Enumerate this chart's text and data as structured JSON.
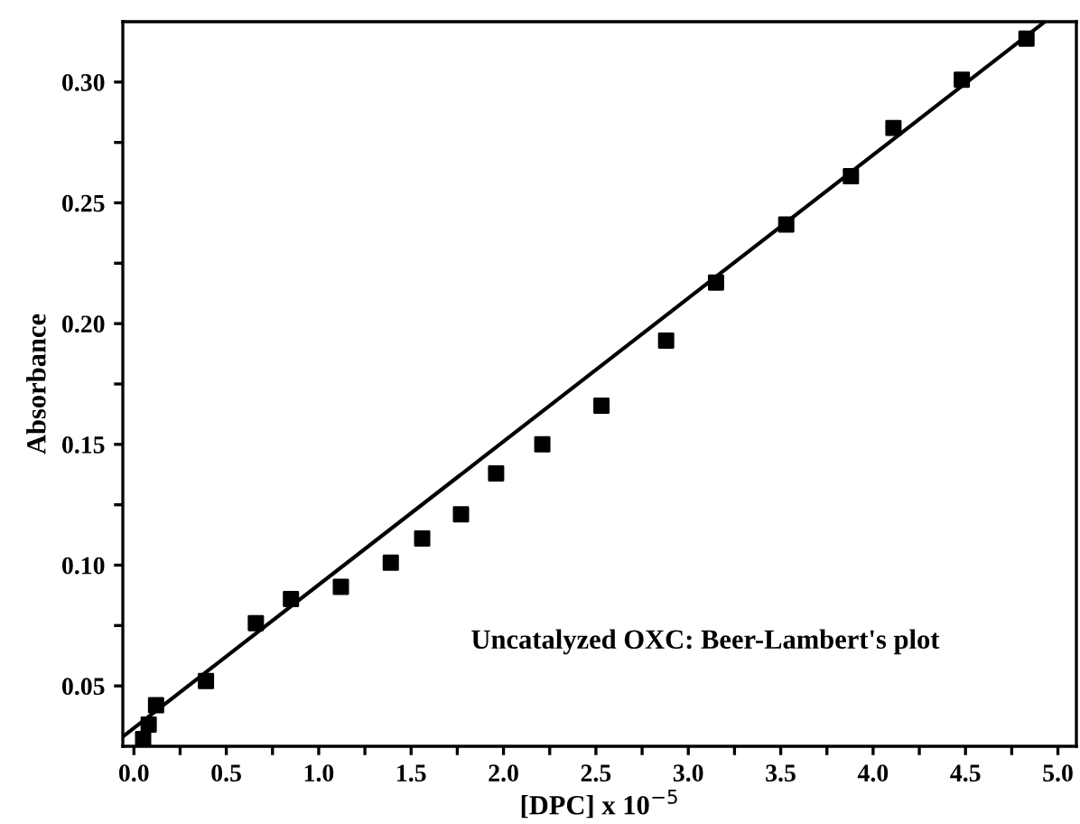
{
  "chart_data": {
    "type": "scatter",
    "xlabel": "[DPC] x 10$^{−5}$",
    "ylabel": "Absorbance",
    "annotations": [
      "Uncatalyzed OXC: Beer-Lambert's plot"
    ],
    "xlim": [
      -0.06,
      5.1
    ],
    "ylim": [
      0.025,
      0.325
    ],
    "xticks": [
      {
        "value": 0,
        "label": "0.0"
      },
      {
        "value": 0.25,
        "label": null
      },
      0.5,
      {
        "value": 0.75,
        "label": null
      },
      {
        "value": 1,
        "label": "1.0"
      },
      {
        "value": 1.25,
        "label": null
      },
      1.5,
      {
        "value": 1.75,
        "label": null
      },
      {
        "value": 2,
        "label": "2.0"
      },
      {
        "value": 2.25,
        "label": null
      },
      2.5,
      {
        "value": 2.75,
        "label": null
      },
      {
        "value": 3,
        "label": "3.0"
      },
      {
        "value": 3.25,
        "label": null
      },
      3.5,
      {
        "value": 3.75,
        "label": null
      },
      {
        "value": 4,
        "label": "4.0"
      },
      {
        "value": 4.25,
        "label": null
      },
      4.5,
      {
        "value": 4.75,
        "label": null
      },
      {
        "value": 5,
        "label": "5.0"
      }
    ],
    "yticks": [
      0.05,
      {
        "value": 0.075,
        "label": null
      },
      {
        "value": 0.1,
        "label": "0.10"
      },
      {
        "value": 0.125,
        "label": null
      },
      0.15,
      {
        "value": 0.175,
        "label": null
      },
      {
        "value": 0.2,
        "label": "0.20"
      },
      {
        "value": 0.225,
        "label": null
      },
      0.25,
      {
        "value": 0.275,
        "label": null
      },
      {
        "value": 0.3,
        "label": "0.30"
      }
    ],
    "grid": false,
    "legend": false,
    "series": [
      {
        "color": "#000000",
        "marker": "square",
        "x": [
          0.05,
          0.08,
          0.12,
          0.39,
          0.66,
          0.85,
          1.12,
          1.39,
          1.56,
          1.77,
          1.96,
          2.21,
          2.53,
          2.88,
          3.15,
          3.53,
          3.88,
          4.11,
          4.48,
          4.83
        ],
        "values": [
          0.028,
          0.034,
          0.042,
          0.052,
          0.076,
          0.086,
          0.091,
          0.101,
          0.111,
          0.121,
          0.138,
          0.15,
          0.166,
          0.193,
          0.217,
          0.241,
          0.261,
          0.281,
          0.301,
          0.318
        ]
      },
      {
        "type": "line",
        "color": "#000000",
        "x": [
          -0.06,
          4.93
        ],
        "values": [
          0.029,
          0.325
        ]
      }
    ]
  }
}
